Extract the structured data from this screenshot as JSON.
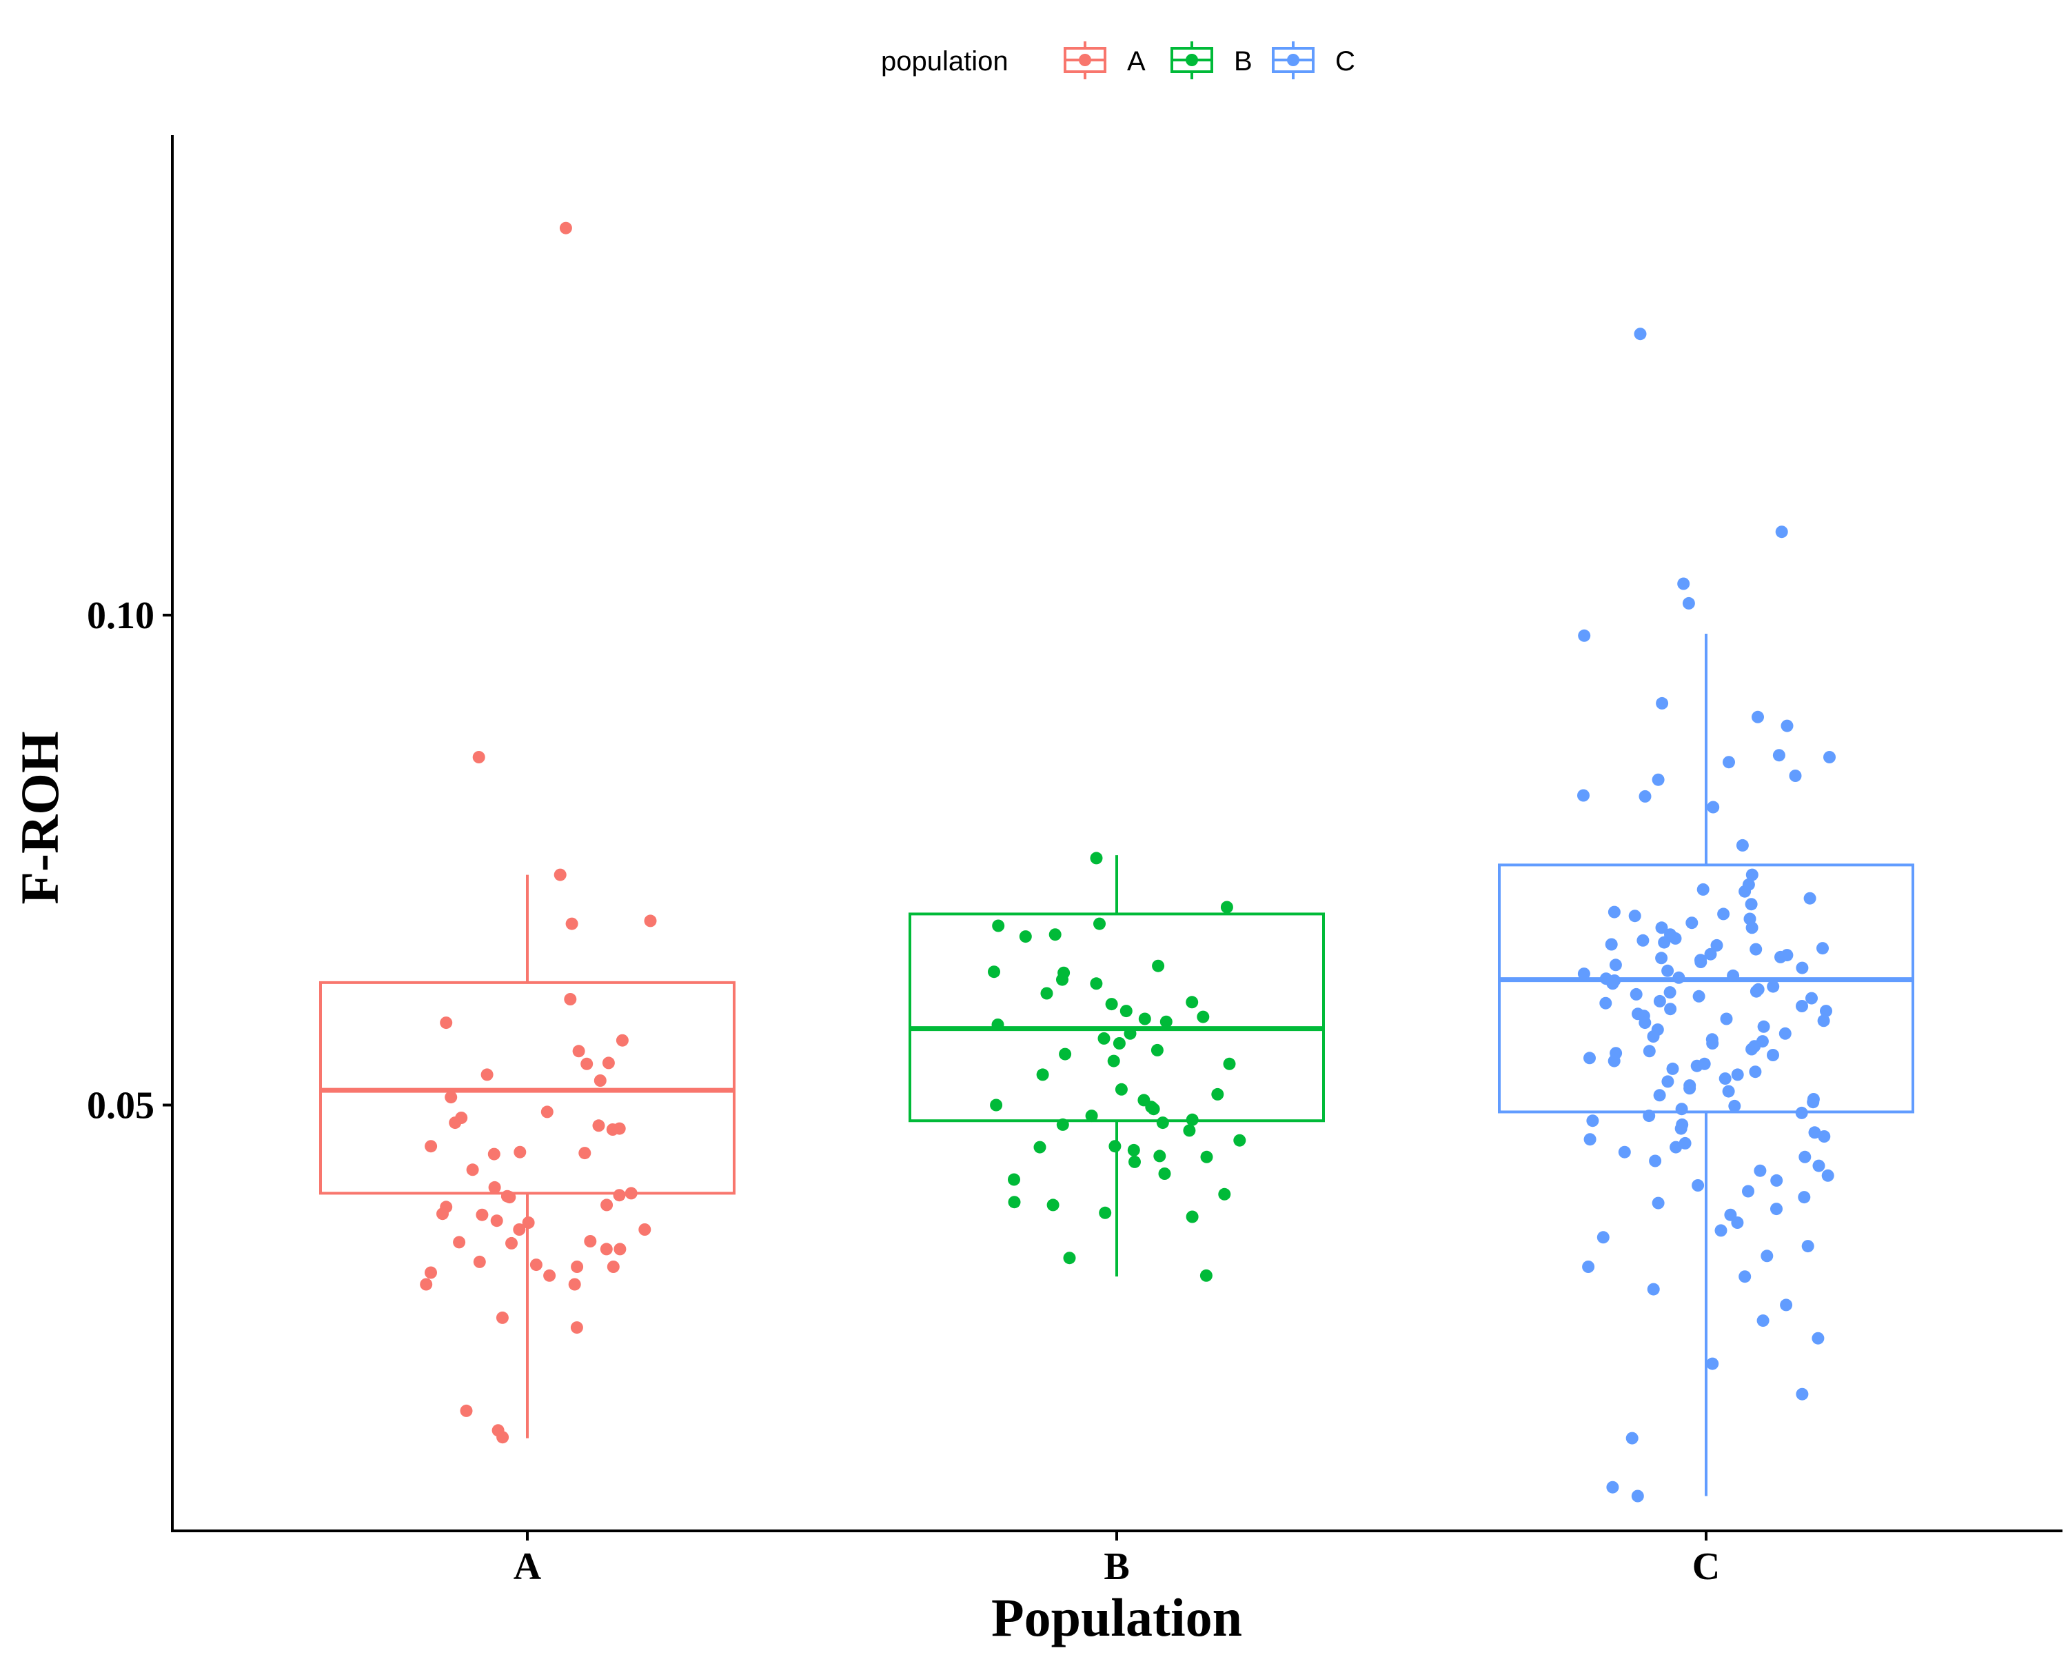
{
  "chart_data": {
    "type": "box",
    "title": "",
    "xlabel": "Population",
    "ylabel": "F-ROH",
    "categories": [
      "A",
      "B",
      "C"
    ],
    "ylim": [
      0.004,
      0.146
    ],
    "yticks": [
      0.05,
      0.1
    ],
    "ytick_labels": [
      "0.05",
      "0.10"
    ],
    "grid": false,
    "legend": {
      "title": "population",
      "position": "top",
      "entries": [
        {
          "label": "A",
          "color": "#F8766D"
        },
        {
          "label": "B",
          "color": "#00BA38"
        },
        {
          "label": "C",
          "color": "#619CFF"
        }
      ]
    },
    "series": [
      {
        "category": "A",
        "color": "#F8766D",
        "box": {
          "min": 0.016,
          "q1": 0.041,
          "median": 0.0515,
          "q3": 0.0625,
          "max": 0.0735
        },
        "points": [
          0.1395,
          0.0855,
          0.0735,
          0.0688,
          0.0685,
          0.0608,
          0.0584,
          0.0566,
          0.0555,
          0.0543,
          0.0542,
          0.0531,
          0.0525,
          0.0508,
          0.0493,
          0.0487,
          0.0482,
          0.0479,
          0.0476,
          0.0475,
          0.0458,
          0.0452,
          0.0451,
          0.045,
          0.0434,
          0.0416,
          0.041,
          0.0408,
          0.0407,
          0.0406,
          0.0398,
          0.0396,
          0.0389,
          0.0388,
          0.0382,
          0.038,
          0.0373,
          0.0373,
          0.0361,
          0.036,
          0.0359,
          0.0353,
          0.0353,
          0.034,
          0.0337,
          0.0335,
          0.0335,
          0.0329,
          0.0326,
          0.0317,
          0.0317,
          0.0283,
          0.0273,
          0.0188,
          0.0168,
          0.0161
        ]
      },
      {
        "category": "B",
        "color": "#00BA38",
        "box": {
          "min": 0.0325,
          "q1": 0.0484,
          "median": 0.0578,
          "q3": 0.0695,
          "max": 0.0755
        },
        "points": [
          0.0752,
          0.0702,
          0.0685,
          0.0683,
          0.0674,
          0.0672,
          0.0642,
          0.0636,
          0.0635,
          0.0628,
          0.0624,
          0.0614,
          0.0605,
          0.0603,
          0.0596,
          0.059,
          0.0588,
          0.0585,
          0.0582,
          0.0573,
          0.0568,
          0.0563,
          0.0556,
          0.0552,
          0.0545,
          0.0542,
          0.0531,
          0.0516,
          0.0511,
          0.0505,
          0.05,
          0.0498,
          0.0496,
          0.0489,
          0.0485,
          0.0482,
          0.048,
          0.0474,
          0.0464,
          0.0458,
          0.0457,
          0.0454,
          0.0448,
          0.0447,
          0.0442,
          0.043,
          0.0424,
          0.0409,
          0.0401,
          0.0398,
          0.039,
          0.0386,
          0.0344,
          0.0326
        ]
      },
      {
        "category": "C",
        "color": "#619CFF",
        "box": {
          "min": 0.0101,
          "q1": 0.0493,
          "median": 0.0628,
          "q3": 0.0745,
          "max": 0.0981
        },
        "points": [
          0.1287,
          0.1085,
          0.1032,
          0.1012,
          0.0979,
          0.091,
          0.0896,
          0.0887,
          0.0857,
          0.0855,
          0.085,
          0.0836,
          0.0832,
          0.0816,
          0.0815,
          0.0804,
          0.0765,
          0.0735,
          0.0725,
          0.072,
          0.0718,
          0.0711,
          0.0705,
          0.0697,
          0.0695,
          0.0693,
          0.069,
          0.0686,
          0.0681,
          0.0681,
          0.0674,
          0.067,
          0.0668,
          0.0666,
          0.0664,
          0.0663,
          0.066,
          0.0659,
          0.0654,
          0.0653,
          0.0651,
          0.065,
          0.0648,
          0.0646,
          0.0643,
          0.064,
          0.0637,
          0.0634,
          0.0632,
          0.063,
          0.0629,
          0.0627,
          0.0625,
          0.0624,
          0.0621,
          0.0618,
          0.0616,
          0.0615,
          0.0613,
          0.0611,
          0.0609,
          0.0606,
          0.0604,
          0.0601,
          0.0598,
          0.0596,
          0.0593,
          0.0591,
          0.0588,
          0.0586,
          0.0584,
          0.058,
          0.0577,
          0.0573,
          0.057,
          0.0567,
          0.0565,
          0.0563,
          0.056,
          0.0557,
          0.0555,
          0.0553,
          0.0551,
          0.0548,
          0.0545,
          0.0542,
          0.054,
          0.0537,
          0.0534,
          0.0531,
          0.0527,
          0.0524,
          0.052,
          0.0517,
          0.0514,
          0.051,
          0.0506,
          0.0503,
          0.0499,
          0.0496,
          0.0492,
          0.0489,
          0.0484,
          0.048,
          0.0476,
          0.0472,
          0.0468,
          0.0465,
          0.0461,
          0.0457,
          0.0452,
          0.0447,
          0.0443,
          0.0438,
          0.0433,
          0.0428,
          0.0423,
          0.0418,
          0.0412,
          0.0406,
          0.04,
          0.0394,
          0.0388,
          0.038,
          0.0372,
          0.0365,
          0.0356,
          0.0346,
          0.0335,
          0.0325,
          0.0312,
          0.0296,
          0.028,
          0.0262,
          0.0236,
          0.0205,
          0.016,
          0.011,
          0.0101
        ]
      }
    ]
  }
}
